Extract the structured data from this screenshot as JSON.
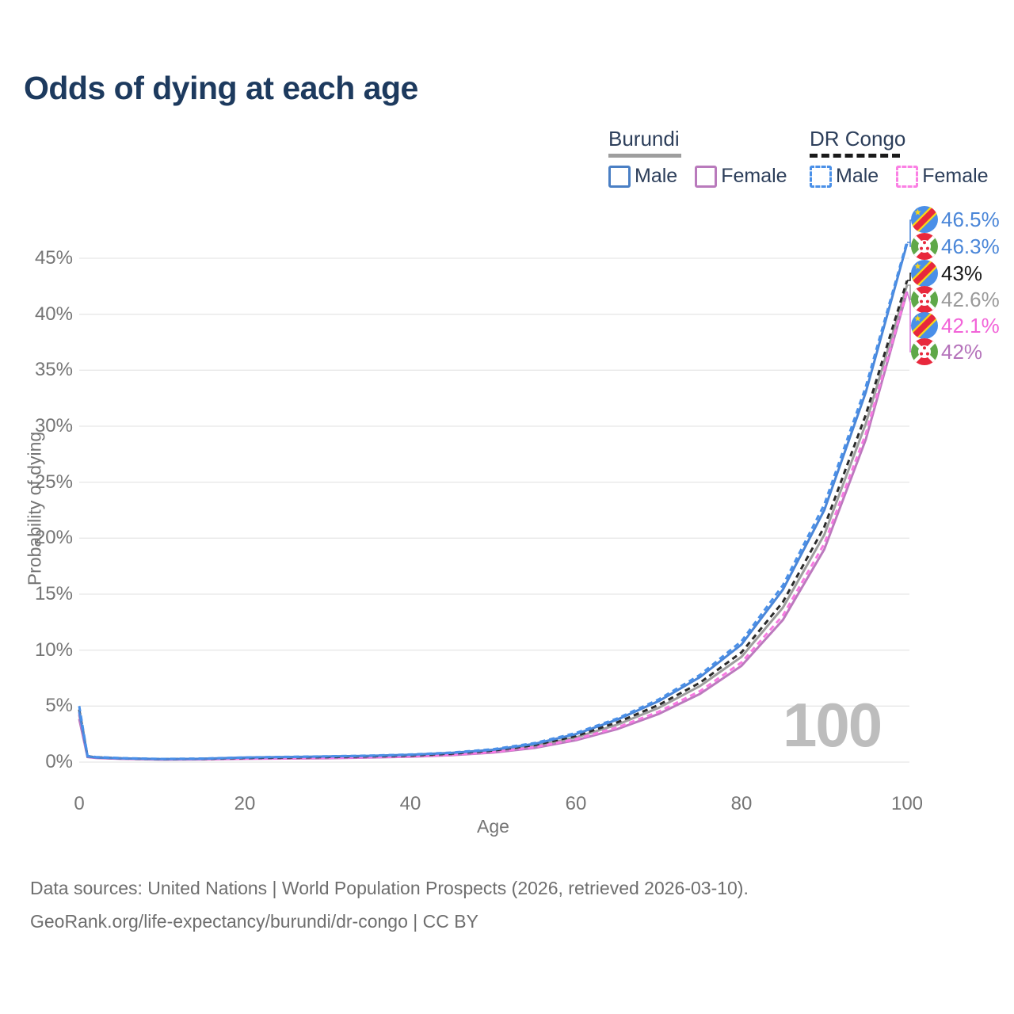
{
  "header": {
    "title": "Odds of dying at each age"
  },
  "legend": {
    "groups": [
      {
        "label": "Burundi",
        "line_style": "solid",
        "underline_color": "#9e9e9e",
        "items": [
          {
            "label": "Male",
            "color": "#4a7fc4",
            "swatch_style": "solid"
          },
          {
            "label": "Female",
            "color": "#b97abc",
            "swatch_style": "solid"
          }
        ]
      },
      {
        "label": "DR Congo",
        "line_style": "dashed",
        "underline_color": "#1a1a1a",
        "items": [
          {
            "label": "Male",
            "color": "#4a90e8",
            "swatch_style": "dashed"
          },
          {
            "label": "Female",
            "color": "#fb80e4",
            "swatch_style": "dashed"
          }
        ]
      }
    ]
  },
  "chart_data": {
    "type": "line",
    "title": "Odds of dying at each age",
    "xlabel": "Age",
    "ylabel": "Probability of dying",
    "xlim": [
      0,
      100
    ],
    "ylim": [
      0,
      48
    ],
    "grid": "horizontal",
    "legend_position": "top-right",
    "x_ticks": [
      0,
      20,
      40,
      60,
      80,
      100
    ],
    "x_tick_labels": [
      "0",
      "20",
      "40",
      "60",
      "80",
      "100"
    ],
    "y_ticks": [
      0,
      5,
      10,
      15,
      20,
      25,
      30,
      35,
      40,
      45
    ],
    "y_tick_labels": [
      "0%",
      "5%",
      "10%",
      "15%",
      "20%",
      "25%",
      "30%",
      "35%",
      "40%",
      "45%"
    ],
    "watermark": "100",
    "ages": [
      0,
      1,
      2,
      5,
      10,
      15,
      20,
      25,
      30,
      35,
      40,
      45,
      50,
      55,
      60,
      65,
      70,
      75,
      80,
      85,
      90,
      95,
      100
    ],
    "series": [
      {
        "id": "burundi-both",
        "country": "Burundi",
        "sex": "Both",
        "color": "#9e9e9e",
        "dash": false,
        "end_value": 42.6,
        "values": [
          4.2,
          0.47,
          0.39,
          0.31,
          0.24,
          0.27,
          0.35,
          0.39,
          0.43,
          0.48,
          0.57,
          0.72,
          0.97,
          1.44,
          2.2,
          3.35,
          4.85,
          6.8,
          9.4,
          13.8,
          20.3,
          30.2,
          42.6
        ]
      },
      {
        "id": "burundi-female",
        "country": "Burundi",
        "sex": "Female",
        "color": "#bc79be",
        "dash": false,
        "end_value": 42.0,
        "values": [
          3.85,
          0.45,
          0.37,
          0.29,
          0.22,
          0.24,
          0.29,
          0.32,
          0.35,
          0.4,
          0.48,
          0.62,
          0.85,
          1.26,
          1.95,
          2.95,
          4.3,
          6.1,
          8.6,
          12.7,
          19.0,
          28.8,
          42.0
        ]
      },
      {
        "id": "drcongo-female",
        "country": "DR Congo",
        "sex": "Female",
        "color": "#f97ae3",
        "dash": true,
        "end_value": 42.1,
        "values": [
          4.35,
          0.5,
          0.41,
          0.32,
          0.24,
          0.26,
          0.31,
          0.34,
          0.38,
          0.43,
          0.52,
          0.66,
          0.9,
          1.33,
          2.05,
          3.1,
          4.5,
          6.35,
          8.9,
          13.1,
          19.5,
          29.3,
          42.1
        ]
      },
      {
        "id": "drcongo-both",
        "country": "DR Congo",
        "sex": "Both",
        "color": "#2a2a2a",
        "dash": true,
        "end_value": 43.0,
        "values": [
          4.7,
          0.52,
          0.43,
          0.34,
          0.26,
          0.29,
          0.37,
          0.41,
          0.45,
          0.51,
          0.6,
          0.76,
          1.03,
          1.52,
          2.33,
          3.55,
          5.1,
          7.1,
          9.8,
          14.3,
          21.0,
          31.0,
          43.0
        ]
      },
      {
        "id": "burundi-male",
        "country": "Burundi",
        "sex": "Male",
        "color": "#4a86d8",
        "dash": false,
        "end_value": 46.3,
        "values": [
          4.5,
          0.5,
          0.42,
          0.33,
          0.26,
          0.3,
          0.4,
          0.45,
          0.5,
          0.56,
          0.65,
          0.82,
          1.1,
          1.63,
          2.5,
          3.8,
          5.45,
          7.6,
          10.5,
          15.4,
          22.5,
          33.0,
          46.3
        ]
      },
      {
        "id": "drcongo-male",
        "country": "DR Congo",
        "sex": "Male",
        "color": "#4a90e8",
        "dash": true,
        "end_value": 46.5,
        "values": [
          5.0,
          0.55,
          0.45,
          0.36,
          0.28,
          0.32,
          0.42,
          0.47,
          0.52,
          0.58,
          0.68,
          0.85,
          1.15,
          1.7,
          2.6,
          3.9,
          5.6,
          7.8,
          10.8,
          15.8,
          23.0,
          33.5,
          46.5
        ]
      }
    ],
    "end_labels": [
      {
        "value": "46.5%",
        "flag": "dr-congo",
        "color": "#4a86d8"
      },
      {
        "value": "46.3%",
        "flag": "burundi",
        "color": "#4a86d8"
      },
      {
        "value": "43%",
        "flag": "dr-congo",
        "color": "#1a1a1a"
      },
      {
        "value": "42.6%",
        "flag": "burundi",
        "color": "#9a9a9a"
      },
      {
        "value": "42.1%",
        "flag": "dr-congo",
        "color": "#f263d8"
      },
      {
        "value": "42%",
        "flag": "burundi",
        "color": "#b573bb"
      }
    ]
  },
  "footer": {
    "line1": "Data sources: United Nations | World Population Prospects (2026, retrieved 2026-03-10).",
    "line2": "GeoRank.org/life-expectancy/burundi/dr-congo | CC BY"
  }
}
